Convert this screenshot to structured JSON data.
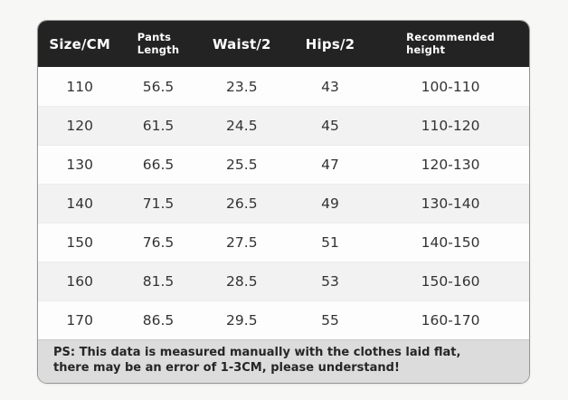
{
  "table": {
    "headers": [
      "Size/CM",
      "Pants Length",
      "Waist/2",
      "Hips/2",
      "Recommended height"
    ],
    "rows": [
      [
        "110",
        "56.5",
        "23.5",
        "43",
        "100-110"
      ],
      [
        "120",
        "61.5",
        "24.5",
        "45",
        "110-120"
      ],
      [
        "130",
        "66.5",
        "25.5",
        "47",
        "120-130"
      ],
      [
        "140",
        "71.5",
        "26.5",
        "49",
        "130-140"
      ],
      [
        "150",
        "76.5",
        "27.5",
        "51",
        "140-150"
      ],
      [
        "160",
        "81.5",
        "28.5",
        "53",
        "150-160"
      ],
      [
        "170",
        "86.5",
        "29.5",
        "55",
        "160-170"
      ]
    ],
    "note_line1": "PS: This data is measured manually with the clothes laid flat,",
    "note_line2": "there may be an error of 1-3CM, please understand!"
  },
  "colors": {
    "header_bg": "#232323",
    "header_text": "#ffffff",
    "row_bg": "#fdfdfd",
    "row_alt_bg": "#f2f2f2",
    "note_bg": "#dcdcdc",
    "border": "#969696",
    "text": "#333333",
    "page_bg": "#f7f7f6"
  }
}
